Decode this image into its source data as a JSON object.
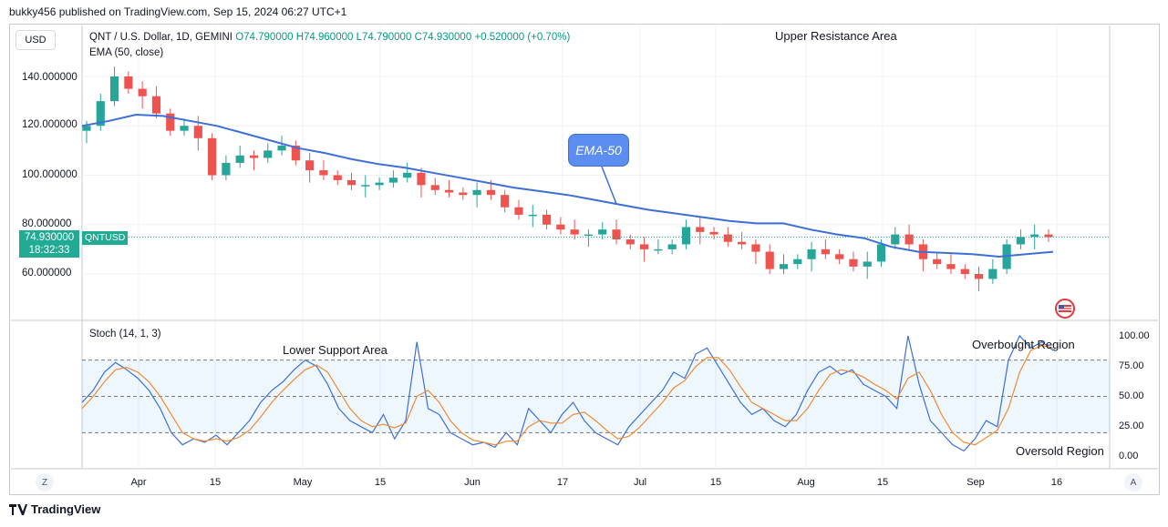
{
  "header": {
    "publisher_line": "bukky456 published on TradingView.com, Sep 15, 2024 06:27 UTC+1"
  },
  "toolbar": {
    "currency": "USD"
  },
  "legend": {
    "symbol": "QNT / U.S. Dollar, 1D, GEMINI",
    "open": "O74.790000",
    "high": "H74.960000",
    "low": "L74.790000",
    "close": "C74.930000",
    "change": "+0.520000 (+0.70%)",
    "ema": "EMA (50, close)",
    "stoch": "Stoch (14, 1, 3)"
  },
  "price_tag": {
    "price": "74.930000",
    "countdown": "18:32:33",
    "ticker": "QNTUSD"
  },
  "annotations": {
    "upper_resistance": "Upper Resistance Area",
    "lower_support": "Lower Support Area",
    "ema_callout": "EMA-50",
    "overbought": "Overbought Region",
    "oversold": "Oversold Region"
  },
  "footer": {
    "brand": "TradingView"
  },
  "buttons": {
    "left": "Z",
    "right": "A"
  },
  "colors": {
    "bull": "#26a69a",
    "bear": "#ef5350",
    "ema": "#3d6fd6",
    "stoch_k": "#3d6fd6",
    "stoch_d": "#f08a32",
    "tag": "#22ab94"
  },
  "chart_data": [
    {
      "type": "candlestick",
      "title": "QNT / U.S. Dollar, 1D, GEMINI",
      "y_ticks": [
        "140.000000",
        "120.000000",
        "100.000000",
        "80.000000",
        "60.000000"
      ],
      "x_ticks": [
        "Apr",
        "15",
        "May",
        "15",
        "Jun",
        "17",
        "Jul",
        "15",
        "Aug",
        "15",
        "Sep",
        "16"
      ],
      "last_price": 74.93,
      "ema50": [
        120,
        122,
        124.5,
        124,
        122,
        120,
        117,
        114,
        111,
        109,
        106.5,
        104.5,
        103,
        101,
        99,
        97,
        95,
        93.5,
        92,
        90,
        88,
        86,
        84.5,
        83,
        81.5,
        80.5,
        80.5,
        78,
        76,
        74.5,
        71,
        69,
        68.5,
        68,
        67,
        68,
        69
      ],
      "closes": [
        120,
        130,
        140,
        135,
        132,
        125,
        118,
        120,
        115,
        100,
        105,
        108,
        107,
        110,
        112,
        106,
        102,
        100,
        98,
        96,
        96,
        97,
        99,
        101,
        96,
        94,
        93,
        92,
        94,
        92,
        87,
        84,
        84,
        80,
        78,
        76,
        76,
        78,
        74,
        72,
        70,
        70,
        72,
        79,
        77,
        76,
        73,
        72,
        69,
        62,
        64,
        66,
        70,
        68,
        66,
        63,
        65,
        72,
        76,
        72,
        66,
        64,
        62,
        60,
        58,
        62,
        72,
        75,
        76,
        74.93
      ]
    },
    {
      "type": "line",
      "title": "Stoch (14, 1, 3)",
      "y_ticks": [
        "100.00",
        "75.00",
        "50.00",
        "25.00",
        "0.00"
      ],
      "bands": [
        80,
        50,
        20
      ],
      "series": [
        {
          "name": "%K",
          "values": [
            45,
            55,
            70,
            78,
            72,
            65,
            55,
            40,
            20,
            10,
            15,
            12,
            18,
            10,
            20,
            30,
            45,
            55,
            62,
            72,
            80,
            75,
            60,
            40,
            30,
            25,
            20,
            35,
            15,
            30,
            95,
            40,
            35,
            20,
            15,
            10,
            12,
            8,
            20,
            10,
            40,
            30,
            20,
            35,
            45,
            30,
            20,
            15,
            10,
            25,
            35,
            45,
            55,
            70,
            65,
            85,
            90,
            75,
            60,
            45,
            35,
            40,
            30,
            25,
            35,
            55,
            70,
            75,
            68,
            72,
            60,
            55,
            50,
            40,
            100,
            60,
            30,
            20,
            10,
            5,
            15,
            30,
            25,
            80,
            100,
            90,
            95,
            88
          ]
        },
        {
          "name": "%D",
          "values": [
            40,
            50,
            62,
            72,
            74,
            70,
            62,
            50,
            35,
            20,
            15,
            13,
            15,
            13,
            16,
            22,
            33,
            45,
            55,
            64,
            72,
            76,
            70,
            55,
            40,
            30,
            25,
            27,
            24,
            28,
            50,
            55,
            45,
            30,
            20,
            14,
            12,
            10,
            13,
            13,
            25,
            30,
            28,
            28,
            35,
            37,
            30,
            22,
            15,
            17,
            25,
            35,
            45,
            57,
            63,
            75,
            82,
            82,
            72,
            58,
            45,
            40,
            35,
            30,
            30,
            40,
            55,
            68,
            72,
            70,
            66,
            60,
            55,
            48,
            65,
            70,
            55,
            35,
            20,
            12,
            10,
            16,
            22,
            40,
            70,
            88,
            92,
            90
          ]
        }
      ]
    }
  ]
}
